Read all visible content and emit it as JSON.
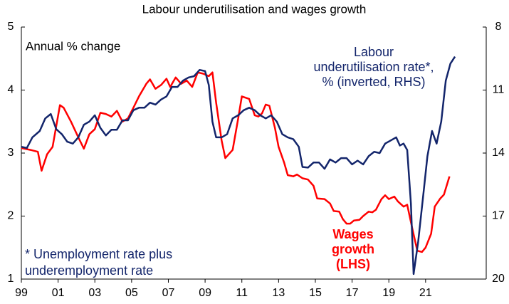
{
  "chart_data": {
    "type": "line",
    "title": "Labour underutilisation and wages growth",
    "y_label": "Annual % change",
    "annotations": {
      "underutilisation": [
        "Labour",
        "underutilisation rate*,",
        "% (inverted, RHS)"
      ],
      "wages": [
        "Wages",
        "growth",
        "(LHS)"
      ],
      "footnote": [
        "* Unemployment rate plus",
        "underemployment rate"
      ]
    },
    "xlim": [
      1999,
      2024.3
    ],
    "xticks": [
      {
        "value": 1999,
        "label": "99"
      },
      {
        "value": 2001,
        "label": "01"
      },
      {
        "value": 2003,
        "label": "03"
      },
      {
        "value": 2005,
        "label": "05"
      },
      {
        "value": 2007,
        "label": "07"
      },
      {
        "value": 2009,
        "label": "09"
      },
      {
        "value": 2011,
        "label": "11"
      },
      {
        "value": 2013,
        "label": "13"
      },
      {
        "value": 2015,
        "label": "15"
      },
      {
        "value": 2017,
        "label": "17"
      },
      {
        "value": 2019,
        "label": "19"
      },
      {
        "value": 2021,
        "label": "21"
      }
    ],
    "ylim": [
      1,
      5
    ],
    "yticks": [
      1,
      2,
      3,
      4,
      5
    ],
    "y2lim": [
      20,
      8
    ],
    "y2ticks": [
      8,
      11,
      14,
      17,
      20
    ],
    "series": [
      {
        "name": "Wages growth",
        "color": "#ff0000",
        "axis": "y",
        "x": [
          1999.0,
          1999.5,
          1999.9,
          2000.1,
          2000.4,
          2000.7,
          2001.1,
          2001.3,
          2001.7,
          2002.1,
          2002.4,
          2002.7,
          2003.0,
          2003.3,
          2003.6,
          2003.9,
          2004.2,
          2004.5,
          2004.8,
          2005.1,
          2005.4,
          2005.8,
          2006.0,
          2006.3,
          2006.6,
          2006.9,
          2007.1,
          2007.4,
          2007.7,
          2008.0,
          2008.3,
          2008.6,
          2008.9,
          2009.2,
          2009.4,
          2009.6,
          2009.9,
          2010.1,
          2010.5,
          2010.8,
          2011.0,
          2011.4,
          2011.7,
          2011.9,
          2012.1,
          2012.3,
          2012.5,
          2012.8,
          2013.0,
          2013.3,
          2013.5,
          2013.8,
          2014.0,
          2014.3,
          2014.6,
          2014.9,
          2015.1,
          2015.5,
          2015.8,
          2016.0,
          2016.3,
          2016.5,
          2016.7,
          2016.9,
          2017.1,
          2017.4,
          2017.6,
          2017.9,
          2018.1,
          2018.3,
          2018.6,
          2018.8,
          2019.0,
          2019.3,
          2019.5,
          2019.8,
          2020.0,
          2020.3,
          2020.55,
          2020.8,
          2021.0,
          2021.3,
          2021.5,
          2021.8,
          2022.0,
          2022.3
        ],
        "values": [
          3.08,
          3.05,
          3.02,
          2.72,
          2.98,
          3.1,
          3.76,
          3.72,
          3.5,
          3.25,
          3.07,
          3.3,
          3.38,
          3.64,
          3.62,
          3.58,
          3.67,
          3.5,
          3.55,
          3.72,
          3.9,
          4.1,
          4.17,
          4.02,
          4.08,
          4.18,
          4.05,
          4.2,
          4.1,
          4.15,
          4.05,
          4.28,
          4.26,
          4.22,
          4.28,
          3.8,
          3.2,
          2.92,
          3.05,
          3.55,
          3.9,
          3.86,
          3.6,
          3.58,
          3.63,
          3.77,
          3.75,
          3.4,
          3.1,
          2.85,
          2.65,
          2.63,
          2.66,
          2.6,
          2.58,
          2.48,
          2.28,
          2.27,
          2.2,
          2.08,
          2.07,
          1.95,
          1.88,
          1.88,
          1.93,
          1.94,
          2.0,
          2.07,
          2.06,
          2.1,
          2.27,
          2.33,
          2.27,
          2.31,
          2.23,
          2.15,
          2.18,
          1.77,
          1.45,
          1.43,
          1.5,
          1.72,
          2.15,
          2.28,
          2.34,
          2.63
        ]
      },
      {
        "name": "Labour underutilisation rate",
        "color": "#13256b",
        "axis": "y2",
        "x": [
          1999.0,
          1999.3,
          1999.6,
          2000.0,
          2000.3,
          2000.6,
          2000.9,
          2001.2,
          2001.5,
          2001.8,
          2002.1,
          2002.4,
          2002.7,
          2003.0,
          2003.3,
          2003.6,
          2003.9,
          2004.2,
          2004.5,
          2004.8,
          2005.1,
          2005.4,
          2005.7,
          2006.0,
          2006.3,
          2006.6,
          2006.9,
          2007.2,
          2007.5,
          2007.8,
          2008.1,
          2008.4,
          2008.7,
          2009.0,
          2009.2,
          2009.4,
          2009.6,
          2009.9,
          2010.2,
          2010.5,
          2010.8,
          2011.1,
          2011.4,
          2011.7,
          2012.0,
          2012.3,
          2012.6,
          2012.9,
          2013.2,
          2013.5,
          2013.8,
          2014.1,
          2014.3,
          2014.6,
          2014.9,
          2015.2,
          2015.5,
          2015.8,
          2016.1,
          2016.4,
          2016.7,
          2017.0,
          2017.3,
          2017.6,
          2017.9,
          2018.2,
          2018.5,
          2018.8,
          2019.1,
          2019.4,
          2019.6,
          2019.8,
          2020.0,
          2020.2,
          2020.35,
          2020.6,
          2020.9,
          2021.1,
          2021.35,
          2021.6,
          2021.85,
          2022.1,
          2022.35,
          2022.6
        ],
        "values": [
          13.7,
          13.76,
          13.25,
          12.95,
          12.35,
          12.14,
          12.86,
          13.1,
          13.46,
          13.55,
          13.25,
          12.65,
          12.5,
          12.2,
          12.8,
          13.16,
          12.89,
          12.89,
          12.44,
          12.44,
          11.96,
          11.84,
          11.84,
          11.6,
          11.69,
          11.45,
          11.3,
          10.85,
          10.85,
          10.55,
          10.4,
          10.34,
          10.04,
          10.1,
          10.76,
          12.5,
          13.25,
          13.25,
          13.1,
          12.35,
          12.2,
          11.96,
          11.84,
          11.96,
          12.2,
          12.35,
          12.2,
          12.5,
          13.1,
          13.25,
          13.34,
          13.7,
          14.66,
          14.69,
          14.45,
          14.45,
          14.75,
          14.3,
          14.45,
          14.24,
          14.24,
          14.54,
          14.36,
          14.54,
          14.15,
          13.94,
          14.0,
          13.55,
          13.4,
          13.25,
          13.64,
          13.55,
          13.85,
          16.4,
          19.76,
          18.2,
          15.8,
          14.15,
          12.95,
          13.55,
          12.5,
          10.55,
          9.74,
          9.41
        ]
      }
    ]
  }
}
